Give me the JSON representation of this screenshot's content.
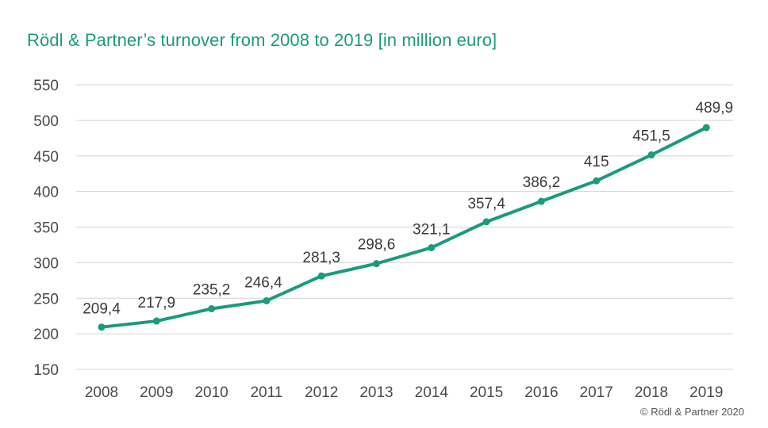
{
  "chart_data": {
    "type": "line",
    "title": "Rödl & Partner’s turnover from 2008 to 2019 [in million euro]",
    "xlabel": "",
    "ylabel": "",
    "categories": [
      "2008",
      "2009",
      "2010",
      "2011",
      "2012",
      "2013",
      "2014",
      "2015",
      "2016",
      "2017",
      "2018",
      "2019"
    ],
    "series": [
      {
        "values": [
          209.4,
          217.9,
          235.2,
          246.4,
          281.3,
          298.6,
          321.1,
          357.4,
          386.2,
          415,
          451.5,
          489.9
        ],
        "labels": [
          "209,4",
          "217,9",
          "235,2",
          "246,4",
          "281,3",
          "298,6",
          "321,1",
          "357,4",
          "386,2",
          "415",
          "451,5",
          "489,9"
        ]
      }
    ],
    "ylim": [
      150,
      550
    ],
    "yticks": [
      150,
      200,
      250,
      300,
      350,
      400,
      450,
      500,
      550
    ],
    "grid": true,
    "legend": "none",
    "colors": {
      "line": "#1a9a7e",
      "title": "#1a9a7e",
      "grid": "#d4d4d4",
      "axis_text": "#4a4a4a",
      "label_text": "#3a3a3a"
    }
  },
  "footer": {
    "copyright": "© Rödl & Partner 2020"
  }
}
